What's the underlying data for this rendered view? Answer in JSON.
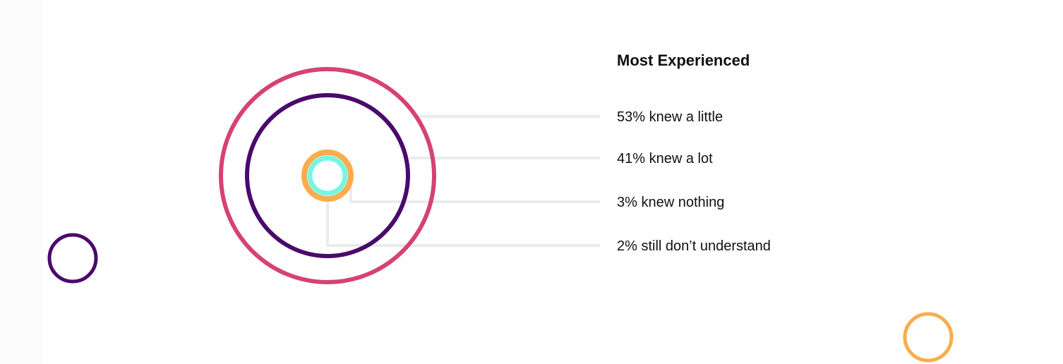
{
  "chart_data": {
    "type": "nested-circles",
    "title": "Most Experienced",
    "series": [
      {
        "name": "knew a little",
        "value": 53,
        "label": "53% knew a little",
        "color": "#d64273"
      },
      {
        "name": "knew a lot",
        "value": 41,
        "label": "41% knew a lot",
        "color": "#4a0a6b"
      },
      {
        "name": "knew nothing",
        "value": 3,
        "label": "3% knew nothing",
        "color": "#fbac4c"
      },
      {
        "name": "still don't understand",
        "value": 2,
        "label": "2% still don’t understand",
        "color": "#74f6e6"
      }
    ],
    "leader_color": "#e9ecef",
    "decor_colors": [
      "#4a0a6b",
      "#fbac4c"
    ]
  }
}
